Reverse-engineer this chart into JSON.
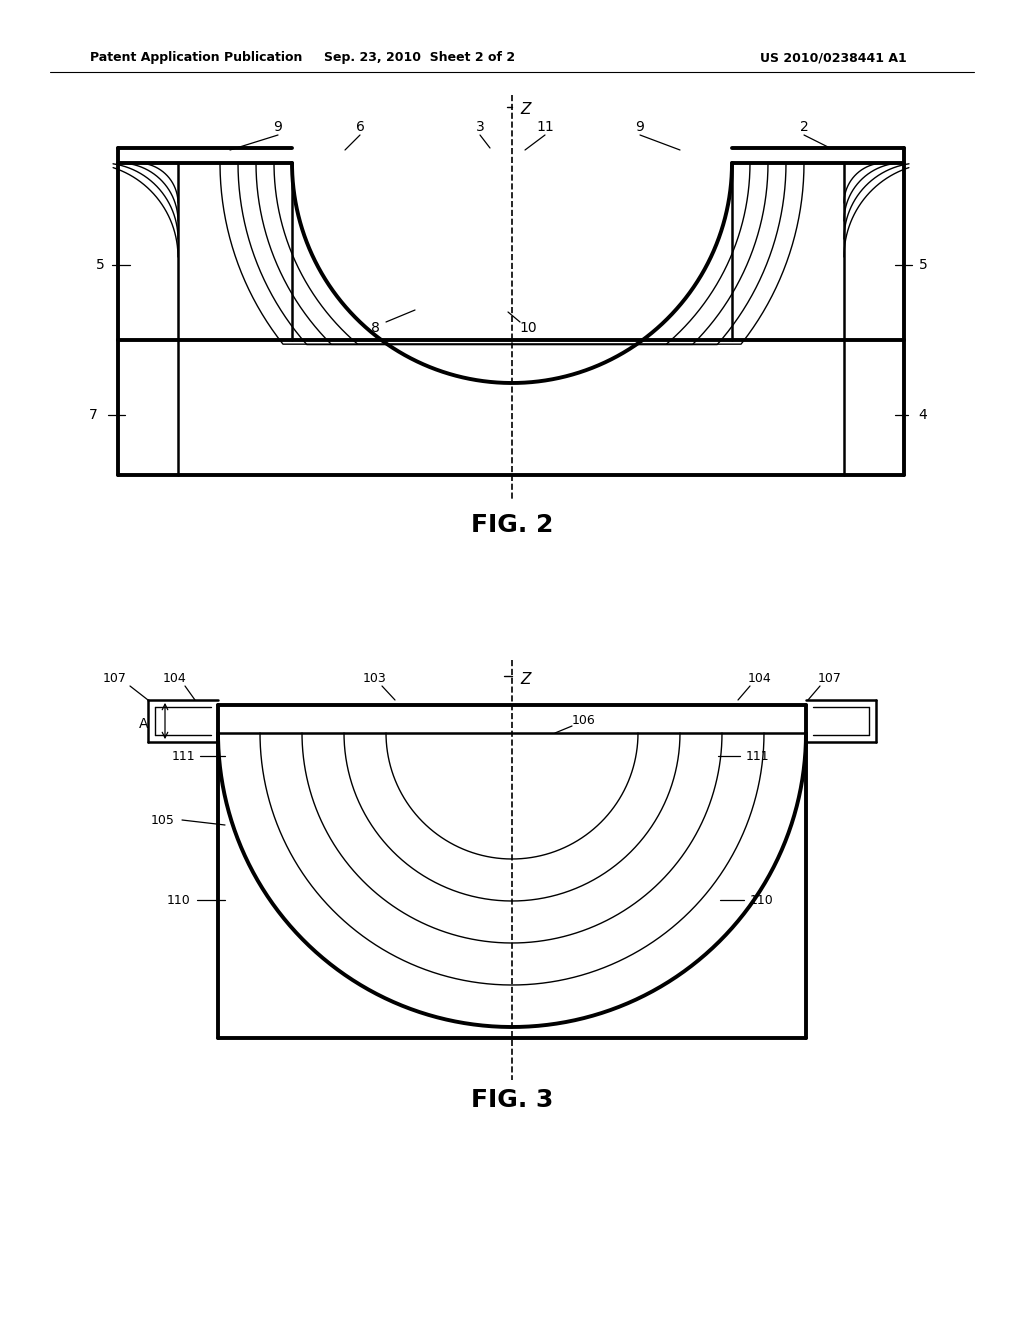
{
  "header_left": "Patent Application Publication",
  "header_mid": "Sep. 23, 2010  Sheet 2 of 2",
  "header_right": "US 2010/0238441 A1",
  "fig2_label": "FIG. 2",
  "fig3_label": "FIG. 3",
  "bg_color": "#ffffff",
  "line_color": "#000000"
}
